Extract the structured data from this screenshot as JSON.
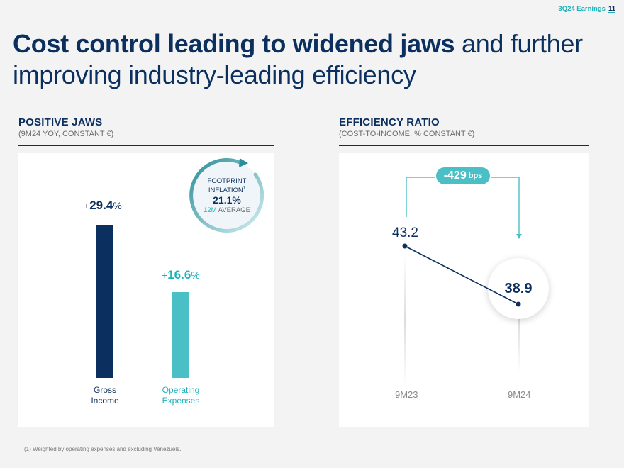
{
  "header": {
    "label": "3Q24 Earnings",
    "page": "11"
  },
  "title": {
    "bold": "Cost control leading to widened jaws",
    "light": " and further improving industry-leading efficiency"
  },
  "left": {
    "heading": "POSITIVE JAWS",
    "subheading": "(9M24 YOY, CONSTANT €)",
    "chart_data": {
      "type": "bar",
      "categories": [
        "Gross Income",
        "Operating Expenses"
      ],
      "values": [
        29.4,
        16.6
      ],
      "unit": "%"
    },
    "bars": [
      {
        "label_line1": "Gross",
        "label_line2": "Income",
        "sign": "+",
        "value": "29.4",
        "unit": "%",
        "color": "#0b2f5e"
      },
      {
        "label_line1": "Operating",
        "label_line2": "Expenses",
        "sign": "+",
        "value": "16.6",
        "unit": "%",
        "color": "#4bbfc6"
      }
    ],
    "badge": {
      "line1": "FOOTPRINT",
      "line2": "INFLATION",
      "superscript": "1",
      "value": "21.1%",
      "avg_teal": "12M",
      "avg_rest": " AVERAGE"
    }
  },
  "right": {
    "heading": "EFFICIENCY RATIO",
    "subheading": "(COST-TO-INCOME, % CONSTANT €)",
    "chart_data": {
      "type": "line",
      "categories": [
        "9M23",
        "9M24"
      ],
      "values": [
        43.2,
        38.9
      ],
      "change": {
        "value": "-429",
        "unit": "bps"
      }
    },
    "start_value": "43.2",
    "end_value": "38.9",
    "change_value": "-429",
    "change_unit": "bps",
    "x_labels": [
      "9M23",
      "9M24"
    ]
  },
  "colors": {
    "navy": "#0b2f5e",
    "teal": "#4bbfc6",
    "accent": "#1bb3b8"
  },
  "footnote": "(1) Weighted by operating expenses and excluding Venezuela."
}
